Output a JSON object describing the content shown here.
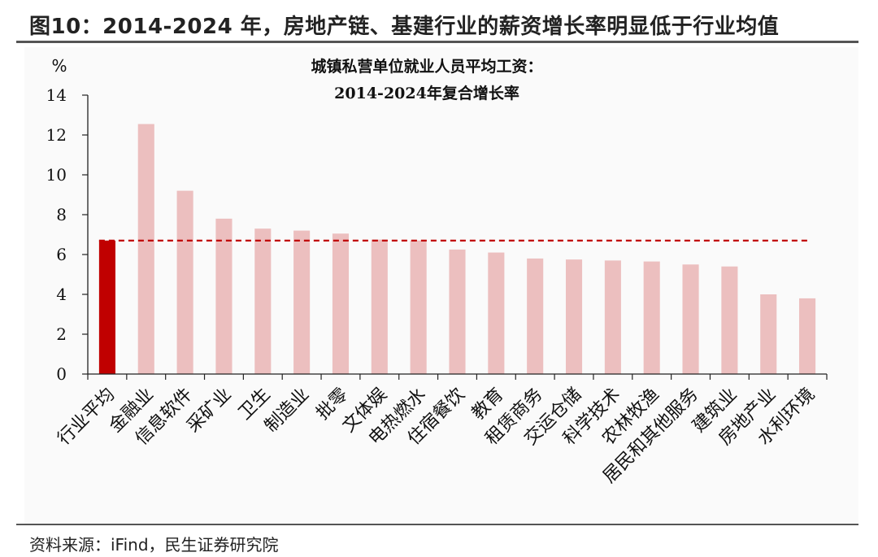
{
  "figure": {
    "title": "图10：2014-2024 年，房地产链、基建行业的薪资增长率明显低于行业均值",
    "source": "资料来源：iFind，民生证券研究院"
  },
  "colors": {
    "highlight": "#c00000",
    "bars": "#ecbfbf",
    "avg_line": "#c00000"
  },
  "chart_data": {
    "type": "bar",
    "title_lines": [
      "城镇私营单位就业人员平均工资：",
      "2014-2024年复合增长率"
    ],
    "ylabel": "%",
    "xlabel": "",
    "ylim": [
      0,
      14
    ],
    "yticks": [
      0,
      2,
      4,
      6,
      8,
      10,
      12,
      14
    ],
    "grid": false,
    "categories": [
      "行业平均",
      "金融业",
      "信息软件",
      "采矿业",
      "卫生",
      "制造业",
      "批零",
      "文体娱",
      "电热燃水",
      "住宿餐饮",
      "教育",
      "租赁商务",
      "交运仓储",
      "科学技术",
      "农林牧渔",
      "居民和其他服务",
      "建筑业",
      "房地产业",
      "水利环境"
    ],
    "values": [
      6.7,
      12.55,
      9.2,
      7.8,
      7.3,
      7.2,
      7.05,
      6.75,
      6.7,
      6.25,
      6.1,
      5.8,
      5.75,
      5.7,
      5.65,
      5.5,
      5.4,
      4.0,
      3.8
    ],
    "highlight_index": 0,
    "reference_line": {
      "value": 6.7,
      "style": "dashed"
    }
  }
}
